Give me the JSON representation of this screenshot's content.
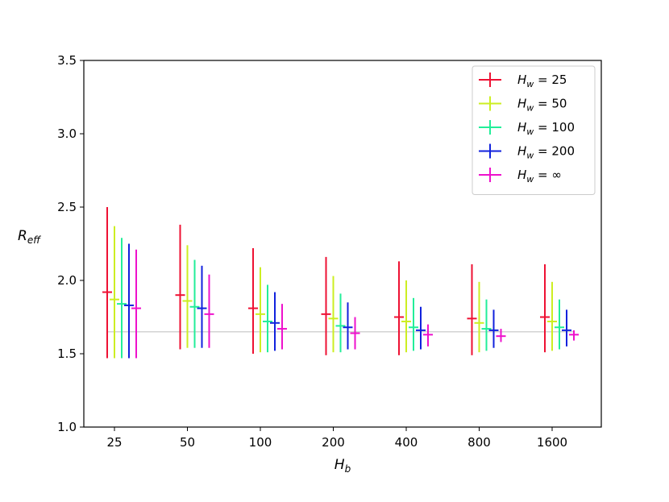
{
  "chart_data": {
    "type": "scatter",
    "subtype": "errorbar",
    "title": "",
    "xlabel": "H_b",
    "ylabel": "R_eff",
    "categories": [
      "25",
      "50",
      "100",
      "200",
      "400",
      "800",
      "1600"
    ],
    "ylim": [
      1.0,
      3.5
    ],
    "yticks": [
      "1.0",
      "1.5",
      "2.0",
      "2.5",
      "3.0",
      "3.5"
    ],
    "grid": false,
    "legend_position": "top-right",
    "reference_line": {
      "y": 1.65,
      "color": "#d3d3d3"
    },
    "series": [
      {
        "name": "H_w = 25",
        "legend_main": "H",
        "legend_sub": "w",
        "legend_rest": " = 25",
        "color": "#ee1133",
        "points": [
          {
            "x": "25",
            "y": 1.92,
            "low": 1.47,
            "high": 2.5
          },
          {
            "x": "50",
            "y": 1.9,
            "low": 1.53,
            "high": 2.38
          },
          {
            "x": "100",
            "y": 1.81,
            "low": 1.5,
            "high": 2.22
          },
          {
            "x": "200",
            "y": 1.77,
            "low": 1.49,
            "high": 2.16
          },
          {
            "x": "400",
            "y": 1.75,
            "low": 1.49,
            "high": 2.13
          },
          {
            "x": "800",
            "y": 1.74,
            "low": 1.49,
            "high": 2.11
          },
          {
            "x": "1600",
            "y": 1.75,
            "low": 1.51,
            "high": 2.11
          }
        ]
      },
      {
        "name": "H_w = 50",
        "legend_main": "H",
        "legend_sub": "w",
        "legend_rest": " = 50",
        "color": "#ccee22",
        "points": [
          {
            "x": "25",
            "y": 1.87,
            "low": 1.47,
            "high": 2.37
          },
          {
            "x": "50",
            "y": 1.86,
            "low": 1.54,
            "high": 2.24
          },
          {
            "x": "100",
            "y": 1.77,
            "low": 1.51,
            "high": 2.09
          },
          {
            "x": "200",
            "y": 1.74,
            "low": 1.51,
            "high": 2.03
          },
          {
            "x": "400",
            "y": 1.72,
            "low": 1.51,
            "high": 2.0
          },
          {
            "x": "800",
            "y": 1.71,
            "low": 1.51,
            "high": 1.99
          },
          {
            "x": "1600",
            "y": 1.72,
            "low": 1.52,
            "high": 1.99
          }
        ]
      },
      {
        "name": "H_w = 100",
        "legend_main": "H",
        "legend_sub": "w",
        "legend_rest": " = 100",
        "color": "#22ee99",
        "points": [
          {
            "x": "25",
            "y": 1.84,
            "low": 1.47,
            "high": 2.29
          },
          {
            "x": "50",
            "y": 1.82,
            "low": 1.54,
            "high": 2.14
          },
          {
            "x": "100",
            "y": 1.72,
            "low": 1.51,
            "high": 1.97
          },
          {
            "x": "200",
            "y": 1.69,
            "low": 1.51,
            "high": 1.91
          },
          {
            "x": "400",
            "y": 1.68,
            "low": 1.52,
            "high": 1.88
          },
          {
            "x": "800",
            "y": 1.67,
            "low": 1.52,
            "high": 1.87
          },
          {
            "x": "1600",
            "y": 1.68,
            "low": 1.53,
            "high": 1.87
          }
        ]
      },
      {
        "name": "H_w = 200",
        "legend_main": "H",
        "legend_sub": "w",
        "legend_rest": " = 200",
        "color": "#1122dd",
        "points": [
          {
            "x": "25",
            "y": 1.83,
            "low": 1.47,
            "high": 2.25
          },
          {
            "x": "50",
            "y": 1.81,
            "low": 1.54,
            "high": 2.1
          },
          {
            "x": "100",
            "y": 1.71,
            "low": 1.52,
            "high": 1.92
          },
          {
            "x": "200",
            "y": 1.68,
            "low": 1.53,
            "high": 1.85
          },
          {
            "x": "400",
            "y": 1.66,
            "low": 1.53,
            "high": 1.82
          },
          {
            "x": "800",
            "y": 1.66,
            "low": 1.54,
            "high": 1.8
          },
          {
            "x": "1600",
            "y": 1.66,
            "low": 1.55,
            "high": 1.8
          }
        ]
      },
      {
        "name": "H_w = ∞",
        "legend_main": "H",
        "legend_sub": "w",
        "legend_rest": " = ∞",
        "color": "#ee11cc",
        "points": [
          {
            "x": "25",
            "y": 1.81,
            "low": 1.47,
            "high": 2.21
          },
          {
            "x": "50",
            "y": 1.77,
            "low": 1.54,
            "high": 2.04
          },
          {
            "x": "100",
            "y": 1.67,
            "low": 1.53,
            "high": 1.84
          },
          {
            "x": "200",
            "y": 1.64,
            "low": 1.53,
            "high": 1.75
          },
          {
            "x": "400",
            "y": 1.63,
            "low": 1.55,
            "high": 1.7
          },
          {
            "x": "800",
            "y": 1.62,
            "low": 1.58,
            "high": 1.67
          },
          {
            "x": "1600",
            "y": 1.63,
            "low": 1.59,
            "high": 1.66
          }
        ]
      }
    ]
  }
}
